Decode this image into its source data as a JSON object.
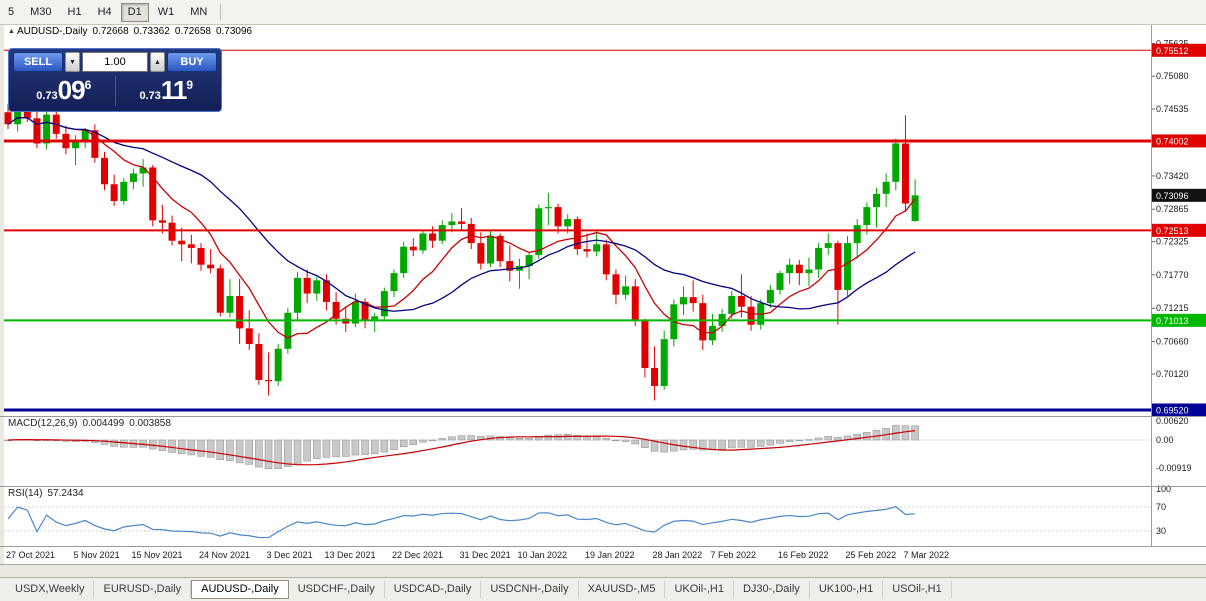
{
  "toolbar": {
    "items": [
      "5",
      "M30",
      "H1",
      "H4",
      "D1",
      "W1",
      "MN"
    ],
    "active": "D1"
  },
  "chart_header": {
    "collapse_icon": "▲",
    "title": "AUDUSD-,Daily",
    "open": "0.72668",
    "high": "0.73362",
    "low": "0.72658",
    "close": "0.73096"
  },
  "trade_panel": {
    "sell_label": "SELL",
    "buy_label": "BUY",
    "volume": "1.00",
    "volume_down_icon": "▼",
    "volume_up_icon": "▲",
    "sell_price": {
      "base": "0.73",
      "big": "09",
      "sup": "6"
    },
    "buy_price": {
      "base": "0.73",
      "big": "11",
      "sup": "9"
    }
  },
  "macd_header": {
    "label": "MACD(12,26,9)",
    "main": "0.004499",
    "signal": "0.003858"
  },
  "rsi_header": {
    "label": "RSI(14)",
    "value": "57.2434"
  },
  "bottom_tabs": {
    "items": [
      "USDX,Weekly",
      "EURUSD-,Daily",
      "AUDUSD-,Daily",
      "USDCHF-,Daily",
      "USDCAD-,Daily",
      "USDCNH-,Daily",
      "XAUUSD-,M5",
      "UKOil-,H1",
      "DJ30-,Daily",
      "UK100-,H1",
      "USOil-,H1"
    ],
    "active": "AUDUSD-,Daily"
  },
  "chart_data": {
    "type": "candlestick",
    "symbol": "AUDUSD-",
    "timeframe": "Daily",
    "up_color": "#00A800",
    "down_color": "#E00000",
    "ohlc_current": {
      "open": 0.72668,
      "high": 0.73362,
      "low": 0.72658,
      "close": 0.73096
    },
    "columns": [
      "date",
      "open",
      "high",
      "low",
      "close"
    ],
    "candles": [
      [
        "2021-10-27",
        0.7448,
        0.7462,
        0.742,
        0.7428
      ],
      [
        "2021-10-28",
        0.7428,
        0.7456,
        0.7416,
        0.745
      ],
      [
        "2021-10-29",
        0.745,
        0.7461,
        0.7432,
        0.7438
      ],
      [
        "2021-11-01",
        0.7438,
        0.746,
        0.7388,
        0.7396
      ],
      [
        "2021-11-02",
        0.7396,
        0.7452,
        0.7386,
        0.7444
      ],
      [
        "2021-11-03",
        0.7444,
        0.745,
        0.7404,
        0.7412
      ],
      [
        "2021-11-04",
        0.7412,
        0.7426,
        0.7378,
        0.7388
      ],
      [
        "2021-11-05",
        0.7388,
        0.741,
        0.736,
        0.74
      ],
      [
        "2021-11-08",
        0.74,
        0.7422,
        0.7388,
        0.7418
      ],
      [
        "2021-11-09",
        0.7418,
        0.7428,
        0.7364,
        0.7372
      ],
      [
        "2021-11-10",
        0.7372,
        0.7382,
        0.7318,
        0.7328
      ],
      [
        "2021-11-11",
        0.7328,
        0.7344,
        0.7292,
        0.73
      ],
      [
        "2021-11-12",
        0.73,
        0.7338,
        0.7294,
        0.7332
      ],
      [
        "2021-11-15",
        0.7332,
        0.7354,
        0.732,
        0.7346
      ],
      [
        "2021-11-16",
        0.7346,
        0.737,
        0.7324,
        0.7356
      ],
      [
        "2021-11-17",
        0.7356,
        0.736,
        0.7258,
        0.7268
      ],
      [
        "2021-11-18",
        0.7268,
        0.7294,
        0.7246,
        0.7264
      ],
      [
        "2021-11-19",
        0.7264,
        0.7276,
        0.7226,
        0.7234
      ],
      [
        "2021-11-22",
        0.7234,
        0.7256,
        0.72,
        0.7228
      ],
      [
        "2021-11-23",
        0.7228,
        0.7244,
        0.7196,
        0.7222
      ],
      [
        "2021-11-24",
        0.7222,
        0.723,
        0.7184,
        0.7194
      ],
      [
        "2021-11-25",
        0.7194,
        0.722,
        0.718,
        0.7188
      ],
      [
        "2021-11-26",
        0.7188,
        0.7194,
        0.7108,
        0.7114
      ],
      [
        "2021-11-29",
        0.7114,
        0.717,
        0.7106,
        0.7142
      ],
      [
        "2021-11-30",
        0.7142,
        0.717,
        0.7062,
        0.7088
      ],
      [
        "2021-12-01",
        0.7088,
        0.7118,
        0.7052,
        0.7062
      ],
      [
        "2021-12-02",
        0.7062,
        0.708,
        0.6994,
        0.7002
      ],
      [
        "2021-12-03",
        0.7002,
        0.7048,
        0.6976,
        0.7
      ],
      [
        "2021-12-06",
        0.7,
        0.7062,
        0.6992,
        0.7054
      ],
      [
        "2021-12-07",
        0.7054,
        0.7122,
        0.7046,
        0.7114
      ],
      [
        "2021-12-08",
        0.7114,
        0.7182,
        0.7102,
        0.7172
      ],
      [
        "2021-12-09",
        0.7172,
        0.7186,
        0.713,
        0.7146
      ],
      [
        "2021-12-10",
        0.7146,
        0.7174,
        0.7134,
        0.7168
      ],
      [
        "2021-12-13",
        0.7168,
        0.7178,
        0.7118,
        0.7132
      ],
      [
        "2021-12-14",
        0.7132,
        0.7148,
        0.7094,
        0.7104
      ],
      [
        "2021-12-15",
        0.7104,
        0.7124,
        0.7082,
        0.7096
      ],
      [
        "2021-12-16",
        0.7096,
        0.7146,
        0.709,
        0.7132
      ],
      [
        "2021-12-17",
        0.7132,
        0.7138,
        0.7088,
        0.71
      ],
      [
        "2021-12-20",
        0.71,
        0.7114,
        0.7082,
        0.7108
      ],
      [
        "2021-12-21",
        0.7108,
        0.7156,
        0.7102,
        0.715
      ],
      [
        "2021-12-22",
        0.715,
        0.7186,
        0.714,
        0.718
      ],
      [
        "2021-12-23",
        0.718,
        0.7232,
        0.7172,
        0.7224
      ],
      [
        "2021-12-24",
        0.7224,
        0.7238,
        0.7208,
        0.7218
      ],
      [
        "2021-12-27",
        0.7218,
        0.7252,
        0.7212,
        0.7246
      ],
      [
        "2021-12-28",
        0.7246,
        0.7258,
        0.7222,
        0.7234
      ],
      [
        "2021-12-29",
        0.7234,
        0.7268,
        0.7228,
        0.726
      ],
      [
        "2021-12-30",
        0.726,
        0.728,
        0.7248,
        0.7266
      ],
      [
        "2021-12-31",
        0.7266,
        0.7288,
        0.7252,
        0.7262
      ],
      [
        "2022-01-03",
        0.7262,
        0.7272,
        0.722,
        0.723
      ],
      [
        "2022-01-04",
        0.723,
        0.7248,
        0.7186,
        0.7196
      ],
      [
        "2022-01-05",
        0.7196,
        0.725,
        0.719,
        0.7242
      ],
      [
        "2022-01-06",
        0.7242,
        0.7246,
        0.719,
        0.72
      ],
      [
        "2022-01-07",
        0.72,
        0.7226,
        0.7166,
        0.7184
      ],
      [
        "2022-01-10",
        0.7184,
        0.7204,
        0.7154,
        0.7192
      ],
      [
        "2022-01-11",
        0.7192,
        0.7214,
        0.717,
        0.721
      ],
      [
        "2022-01-12",
        0.721,
        0.7294,
        0.7204,
        0.7288
      ],
      [
        "2022-01-13",
        0.7288,
        0.7314,
        0.726,
        0.729
      ],
      [
        "2022-01-14",
        0.729,
        0.7296,
        0.7246,
        0.7258
      ],
      [
        "2022-01-17",
        0.7258,
        0.7278,
        0.7246,
        0.727
      ],
      [
        "2022-01-18",
        0.727,
        0.7274,
        0.721,
        0.722
      ],
      [
        "2022-01-19",
        0.722,
        0.7246,
        0.7206,
        0.7216
      ],
      [
        "2022-01-20",
        0.7216,
        0.7252,
        0.7208,
        0.7228
      ],
      [
        "2022-01-21",
        0.7228,
        0.7236,
        0.7168,
        0.7178
      ],
      [
        "2022-01-24",
        0.7178,
        0.7186,
        0.7128,
        0.7144
      ],
      [
        "2022-01-25",
        0.7144,
        0.7176,
        0.7136,
        0.7158
      ],
      [
        "2022-01-26",
        0.7158,
        0.717,
        0.7092,
        0.71
      ],
      [
        "2022-01-27",
        0.71,
        0.7104,
        0.7006,
        0.7022
      ],
      [
        "2022-01-28",
        0.7022,
        0.7058,
        0.6968,
        0.6992
      ],
      [
        "2022-01-31",
        0.6992,
        0.7084,
        0.6986,
        0.707
      ],
      [
        "2022-02-01",
        0.707,
        0.7136,
        0.7058,
        0.7128
      ],
      [
        "2022-02-02",
        0.7128,
        0.7158,
        0.711,
        0.714
      ],
      [
        "2022-02-03",
        0.714,
        0.7168,
        0.7116,
        0.713
      ],
      [
        "2022-02-04",
        0.713,
        0.7144,
        0.7052,
        0.7068
      ],
      [
        "2022-02-07",
        0.7068,
        0.7112,
        0.706,
        0.7092
      ],
      [
        "2022-02-08",
        0.7092,
        0.712,
        0.7082,
        0.7112
      ],
      [
        "2022-02-09",
        0.7112,
        0.715,
        0.7104,
        0.7142
      ],
      [
        "2022-02-10",
        0.7142,
        0.7178,
        0.7106,
        0.7124
      ],
      [
        "2022-02-11",
        0.7124,
        0.7142,
        0.7084,
        0.7094
      ],
      [
        "2022-02-14",
        0.7094,
        0.7136,
        0.7086,
        0.713
      ],
      [
        "2022-02-15",
        0.713,
        0.716,
        0.7122,
        0.7152
      ],
      [
        "2022-02-16",
        0.7152,
        0.7184,
        0.7144,
        0.718
      ],
      [
        "2022-02-17",
        0.718,
        0.7204,
        0.7162,
        0.7194
      ],
      [
        "2022-02-18",
        0.7194,
        0.7202,
        0.716,
        0.718
      ],
      [
        "2022-02-21",
        0.718,
        0.7206,
        0.7158,
        0.7186
      ],
      [
        "2022-02-22",
        0.7186,
        0.723,
        0.7172,
        0.7222
      ],
      [
        "2022-02-23",
        0.7222,
        0.7246,
        0.721,
        0.723
      ],
      [
        "2022-02-24",
        0.723,
        0.7234,
        0.7094,
        0.7152
      ],
      [
        "2022-02-25",
        0.7152,
        0.7242,
        0.7142,
        0.723
      ],
      [
        "2022-02-28",
        0.723,
        0.727,
        0.7204,
        0.726
      ],
      [
        "2022-03-01",
        0.726,
        0.7298,
        0.7244,
        0.729
      ],
      [
        "2022-03-02",
        0.729,
        0.7322,
        0.7256,
        0.7312
      ],
      [
        "2022-03-03",
        0.7312,
        0.7346,
        0.729,
        0.7332
      ],
      [
        "2022-03-04",
        0.7332,
        0.7404,
        0.7318,
        0.7396
      ],
      [
        "2022-03-07",
        0.7396,
        0.7443,
        0.7282,
        0.7296
      ],
      [
        "2022-03-08",
        0.72668,
        0.73362,
        0.72658,
        0.73096
      ]
    ],
    "overlays": [
      {
        "name": "ma-fast",
        "type": "sma",
        "period": 8,
        "color": "#C80000"
      },
      {
        "name": "ma-slow",
        "type": "sma",
        "period": 21,
        "color": "#000080"
      }
    ],
    "hlines": [
      {
        "price": 0.75512,
        "color": "#E10000",
        "width": 1
      },
      {
        "price": 0.74002,
        "color": "#E10000",
        "width": 3
      },
      {
        "price": 0.72513,
        "color": "#E10000",
        "width": 2
      },
      {
        "price": 0.71013,
        "color": "#00B800",
        "width": 2
      },
      {
        "price": 0.6952,
        "color": "#000096",
        "width": 3
      }
    ],
    "price_ticks": [
      {
        "v": 0.75625,
        "label": "0.75625"
      },
      {
        "v": 0.7508,
        "label": "0.75080"
      },
      {
        "v": 0.74535,
        "label": "0.74535"
      },
      {
        "v": 0.7342,
        "label": "0.73420"
      },
      {
        "v": 0.72865,
        "label": "0.72865"
      },
      {
        "v": 0.72325,
        "label": "0.72325"
      },
      {
        "v": 0.7177,
        "label": "0.71770"
      },
      {
        "v": 0.71215,
        "label": "0.71215"
      },
      {
        "v": 0.7066,
        "label": "0.70660"
      },
      {
        "v": 0.7012,
        "label": "0.70120"
      }
    ],
    "badges": [
      {
        "v": 0.75512,
        "label": "0.75512",
        "color": "#E10000",
        "type": "line"
      },
      {
        "v": 0.74002,
        "label": "0.74002",
        "color": "#E10000",
        "type": "line"
      },
      {
        "v": 0.73096,
        "label": "0.73096",
        "color": "#111111",
        "type": "current-price"
      },
      {
        "v": 0.72513,
        "label": "0.72513",
        "color": "#E10000",
        "type": "line"
      },
      {
        "v": 0.71013,
        "label": "0.71013",
        "color": "#00B800",
        "type": "line"
      },
      {
        "v": 0.6952,
        "label": "0.69520",
        "color": "#000096",
        "type": "line"
      }
    ],
    "indicators": [
      {
        "name": "MACD",
        "label": "MACD(12,26,9)",
        "params": [
          12,
          26,
          9
        ],
        "values_text": [
          "0.004499",
          "0.003858"
        ],
        "histogram_color": "#C9C9C9",
        "signal_color": "#C80000",
        "axis": [
          {
            "v": 0.0062,
            "label": "0.00620"
          },
          {
            "v": 0,
            "label": "0.00"
          },
          {
            "v": -0.00919,
            "label": "-0.00919"
          }
        ]
      },
      {
        "name": "RSI",
        "label": "RSI(14)",
        "params": [
          14
        ],
        "value_text": "57.2434",
        "color": "#4A86C8",
        "levels": [
          70,
          30
        ],
        "axis": [
          {
            "v": 100,
            "label": "100"
          },
          {
            "v": 70,
            "label": "70"
          },
          {
            "v": 30,
            "label": "30"
          }
        ]
      }
    ],
    "date_labels": [
      {
        "i": 0,
        "text": "27 Oct 2021"
      },
      {
        "i": 7,
        "text": "5 Nov 2021"
      },
      {
        "i": 13,
        "text": "15 Nov 2021"
      },
      {
        "i": 20,
        "text": "24 Nov 2021"
      },
      {
        "i": 27,
        "text": "3 Dec 2021"
      },
      {
        "i": 33,
        "text": "13 Dec 2021"
      },
      {
        "i": 40,
        "text": "22 Dec 2021"
      },
      {
        "i": 47,
        "text": "31 Dec 2021"
      },
      {
        "i": 53,
        "text": "10 Jan 2022"
      },
      {
        "i": 60,
        "text": "19 Jan 2022"
      },
      {
        "i": 67,
        "text": "28 Jan 2022"
      },
      {
        "i": 73,
        "text": "7 Feb 2022"
      },
      {
        "i": 80,
        "text": "16 Feb 2022"
      },
      {
        "i": 87,
        "text": "25 Feb 2022"
      },
      {
        "i": 93,
        "text": "7 Mar 2022"
      }
    ]
  }
}
